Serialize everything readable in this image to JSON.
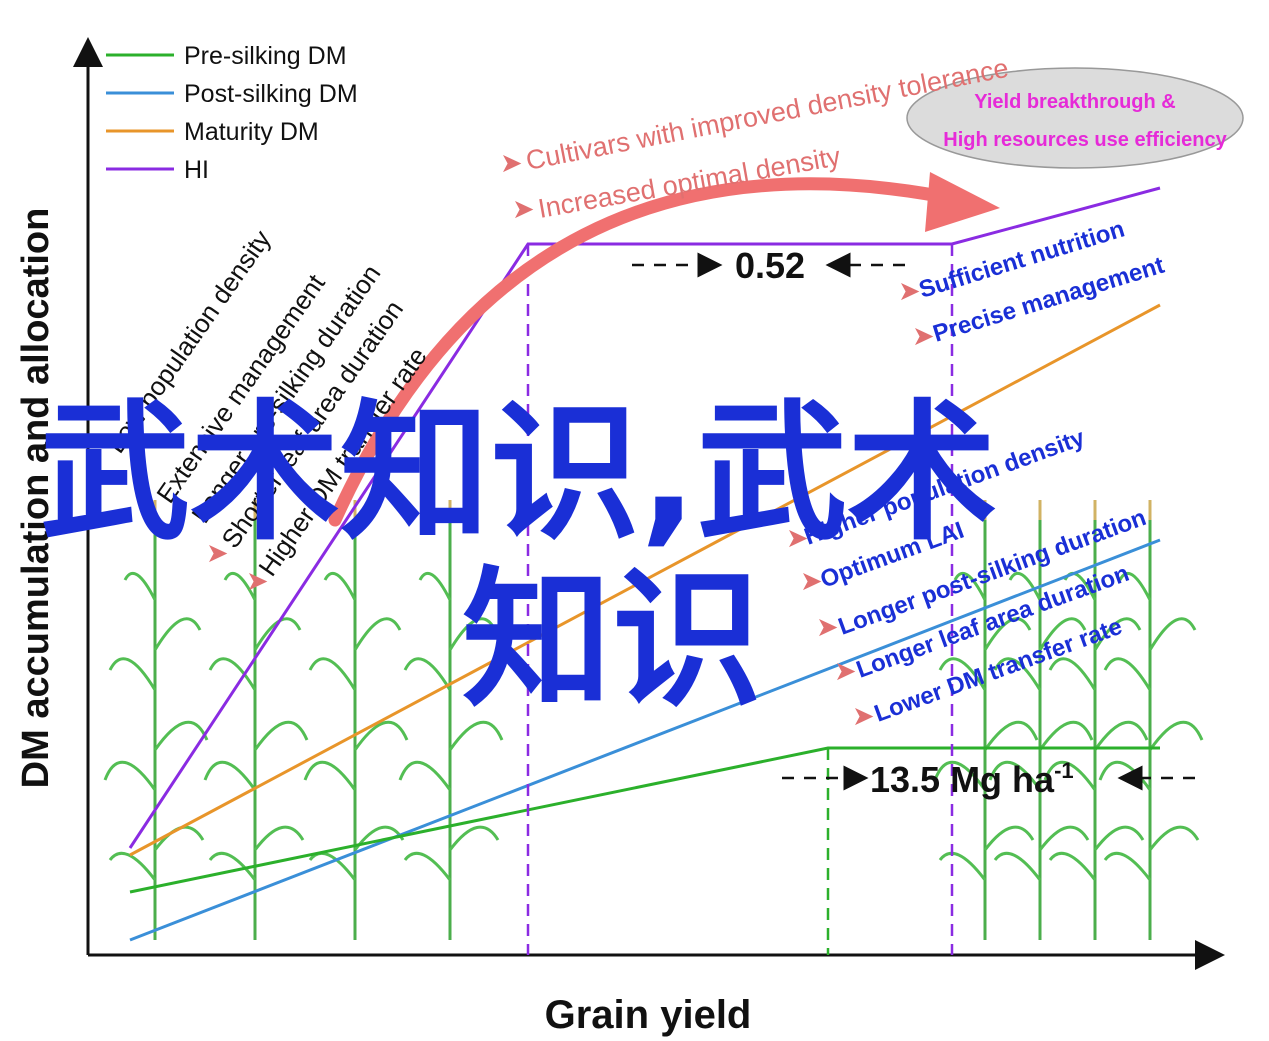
{
  "axes": {
    "x_label": "Grain yield",
    "y_label": "DM accumulation and allocation"
  },
  "legend": [
    {
      "label": "Pre-silking DM",
      "color": "#2bb02b"
    },
    {
      "label": "Post-silking DM",
      "color": "#3a8fd8"
    },
    {
      "label": "Maturity DM",
      "color": "#e8952a"
    },
    {
      "label": "HI",
      "color": "#8a2be2"
    }
  ],
  "values": {
    "hi": "0.52",
    "pre_silking_dm": "13.5 Mg ha",
    "pre_silking_dm_sup": "-1"
  },
  "top_annotations": {
    "line1": "Cultivars with improved density tolerance",
    "line2": "Increased optimal density",
    "ellipse_line1": "Yield breakthrough &",
    "ellipse_line2": "High resources use efficiency"
  },
  "left_factors": [
    "Low population density",
    "Extensive management",
    "Longer pre-silking duration",
    "Shorter leaf area duration",
    "Higher DM transfer rate"
  ],
  "right_factors": [
    "Sufficient nutrition",
    "Precise management",
    "Higher population density",
    "Optimum LAI",
    "Longer  post-silking duration",
    "Longer leaf area duration",
    "Lower DM transfer rate"
  ],
  "watermark": {
    "line1": "武术知识,武术",
    "line2": "知识"
  },
  "colors": {
    "pre": "#2bb02b",
    "post": "#3a8fd8",
    "maturity": "#e8952a",
    "hi": "#8a2be2",
    "arrow": "#f07070",
    "annotation_blue": "#1a2fd6",
    "bullet_red": "#e01010",
    "ellipse_text": "#e62ad8"
  }
}
